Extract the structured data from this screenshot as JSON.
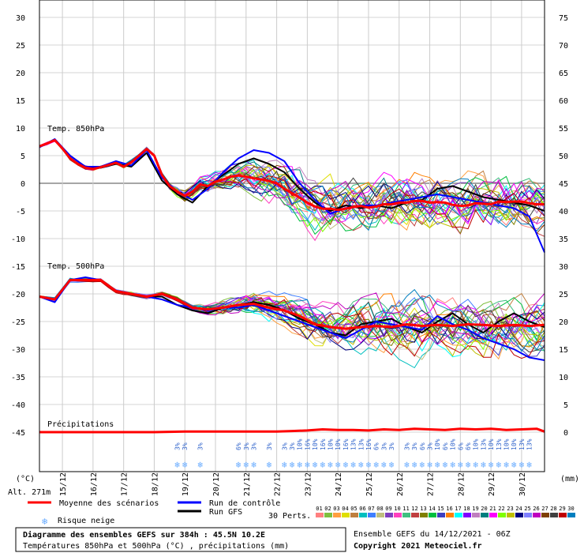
{
  "chart_data": {
    "type": "line",
    "title": "Diagramme des ensembles GEFS sur 384h : 45.5N 10.2E",
    "subtitle": "Températures 850hPa et 500hPa (°C) , précipitations (mm)",
    "run_label": "Ensemble GEFS du 14/12/2021 - 06Z",
    "copyright": "Copyright 2021 Meteociel.fr",
    "altitude_label": "Alt. 271m",
    "left_unit": "(°C)",
    "right_unit": "(mm)",
    "left_ticks": [
      30,
      25,
      20,
      15,
      10,
      5,
      0,
      -5,
      -10,
      -15,
      -20,
      -25,
      -30,
      -35,
      -40,
      -45
    ],
    "right_ticks": [
      75,
      70,
      65,
      60,
      55,
      50,
      45,
      40,
      35,
      30,
      25,
      20,
      15,
      10,
      5,
      0
    ],
    "ylim": [
      -45,
      30
    ],
    "dates": [
      "15/12",
      "16/12",
      "17/12",
      "18/12",
      "19/12",
      "20/12",
      "21/12",
      "22/12",
      "23/12",
      "24/12",
      "25/12",
      "26/12",
      "27/12",
      "28/12",
      "29/12",
      "30/12"
    ],
    "x_days": [
      14.25,
      30.75
    ],
    "panel_labels": {
      "t850": "Temp. 850hPa",
      "t500": "Temp. 500hPa",
      "precip": "Précipitations"
    },
    "legend": {
      "mean": "Moyenne des scénarios",
      "control": "Run de contrôle",
      "gfs": "Run GFS",
      "snow": "Risque neige",
      "perts": "30 Perts."
    },
    "colors": {
      "mean": "#ff0000",
      "control": "#0000ff",
      "gfs": "#000000",
      "snow": "#66aaff"
    },
    "member_numbers": [
      "01",
      "02",
      "03",
      "04",
      "05",
      "06",
      "07",
      "08",
      "09",
      "10",
      "11",
      "12",
      "13",
      "14",
      "15",
      "16",
      "17",
      "18",
      "19",
      "20",
      "21",
      "22",
      "23",
      "24",
      "25",
      "26",
      "27",
      "28",
      "29",
      "30"
    ],
    "member_colors": [
      "#ff7f7f",
      "#7fbf3f",
      "#ff9f3f",
      "#dfdf00",
      "#bf7f3f",
      "#00bfbf",
      "#3f7fff",
      "#bfbf7f",
      "#7f3fbf",
      "#ff3fbf",
      "#3fbf7f",
      "#bf3f3f",
      "#7f7f00",
      "#00bf3f",
      "#3f3fbf",
      "#ff7f00",
      "#00ffff",
      "#7f00ff",
      "#bf7fbf",
      "#007f7f",
      "#ff00ff",
      "#7fff00",
      "#bfbf00",
      "#00007f",
      "#7f7fff",
      "#bf00bf",
      "#7f3f00",
      "#3f3f3f",
      "#bf0000",
      "#007fbf"
    ],
    "snow_days": [
      {
        "day": 18.75,
        "pct": "3%"
      },
      {
        "day": 19.0,
        "pct": "3%"
      },
      {
        "day": 19.5,
        "pct": "3%"
      },
      {
        "day": 20.75,
        "pct": "6%"
      },
      {
        "day": 21.0,
        "pct": "3%"
      },
      {
        "day": 21.25,
        "pct": "3%"
      },
      {
        "day": 21.75,
        "pct": "3%"
      },
      {
        "day": 22.25,
        "pct": "3%"
      },
      {
        "day": 22.5,
        "pct": "3%"
      },
      {
        "day": 22.75,
        "pct": "10%"
      },
      {
        "day": 23.0,
        "pct": "16%"
      },
      {
        "day": 23.25,
        "pct": "10%"
      },
      {
        "day": 23.5,
        "pct": "16%"
      },
      {
        "day": 23.75,
        "pct": "10%"
      },
      {
        "day": 24.0,
        "pct": "10%"
      },
      {
        "day": 24.25,
        "pct": "16%"
      },
      {
        "day": 24.5,
        "pct": "13%"
      },
      {
        "day": 24.75,
        "pct": "13%"
      },
      {
        "day": 25.0,
        "pct": "16%"
      },
      {
        "day": 25.25,
        "pct": "6%"
      },
      {
        "day": 25.5,
        "pct": "3%"
      },
      {
        "day": 25.75,
        "pct": "3%"
      },
      {
        "day": 26.25,
        "pct": "3%"
      },
      {
        "day": 26.5,
        "pct": "3%"
      },
      {
        "day": 26.75,
        "pct": "6%"
      },
      {
        "day": 27.0,
        "pct": "3%"
      },
      {
        "day": 27.25,
        "pct": "10%"
      },
      {
        "day": 27.5,
        "pct": "6%"
      },
      {
        "day": 27.75,
        "pct": "10%"
      },
      {
        "day": 28.0,
        "pct": "6%"
      },
      {
        "day": 28.25,
        "pct": "6%"
      },
      {
        "day": 28.5,
        "pct": "10%"
      },
      {
        "day": 28.75,
        "pct": "13%"
      },
      {
        "day": 29.0,
        "pct": "10%"
      },
      {
        "day": 29.25,
        "pct": "13%"
      },
      {
        "day": 29.5,
        "pct": "10%"
      },
      {
        "day": 29.75,
        "pct": "10%"
      },
      {
        "day": 30.0,
        "pct": "13%"
      },
      {
        "day": 30.25,
        "pct": "13%"
      }
    ],
    "series": [
      {
        "name": "Moyenne des scénarios",
        "role": "t850_mean",
        "x": [
          14.25,
          14.5,
          14.75,
          15.0,
          15.25,
          15.5,
          15.75,
          16.0,
          16.25,
          16.5,
          16.75,
          17.0,
          17.25,
          17.5,
          17.75,
          18.0,
          18.25,
          18.5,
          18.75,
          19.0,
          19.25,
          19.5,
          19.75,
          20.0,
          20.25,
          20.5,
          20.75,
          21.0,
          21.25,
          21.5,
          21.75,
          22.0,
          22.25,
          22.5,
          22.75,
          23.0,
          23.25,
          23.5,
          23.75,
          24.0,
          24.25,
          24.5,
          24.75,
          25.0,
          25.25,
          25.5,
          25.75,
          26.0,
          26.25,
          26.5,
          26.75,
          27.0,
          27.25,
          27.5,
          27.75,
          28.0,
          28.25,
          28.5,
          28.75,
          29.0,
          29.25,
          29.5,
          29.75,
          30.0,
          30.25,
          30.5,
          30.75
        ],
        "values": [
          6.7,
          7.2,
          7.8,
          6.3,
          4.5,
          3.5,
          2.8,
          2.6,
          2.9,
          3.3,
          3.7,
          3.0,
          3.8,
          5.0,
          6.2,
          5.0,
          1.5,
          -0.5,
          -1.5,
          -2.3,
          -1.5,
          -0.2,
          -0.5,
          0.3,
          0.7,
          1.2,
          1.4,
          1.2,
          0.9,
          0.7,
          0.4,
          0.0,
          -1.0,
          -1.8,
          -2.6,
          -3.5,
          -4.2,
          -4.6,
          -4.6,
          -4.8,
          -4.6,
          -4.3,
          -4.1,
          -4.4,
          -4.2,
          -3.8,
          -3.8,
          -3.5,
          -3.5,
          -3.2,
          -3.2,
          -3.5,
          -3.4,
          -3.5,
          -3.9,
          -4.1,
          -4.0,
          -3.6,
          -3.7,
          -3.8,
          -3.3,
          -3.4,
          -3.3,
          -3.3,
          -3.6,
          -3.8,
          -3.8
        ]
      },
      {
        "name": "Run de contrôle",
        "role": "t850_control",
        "x": [
          14.25,
          14.75,
          15.25,
          15.75,
          16.25,
          16.75,
          17.25,
          17.75,
          18.25,
          18.75,
          19.25,
          19.75,
          20.25,
          20.75,
          21.25,
          21.75,
          22.25,
          22.75,
          23.25,
          23.75,
          24.25,
          24.75,
          25.25,
          25.75,
          26.25,
          26.75,
          27.25,
          27.75,
          28.25,
          28.75,
          29.25,
          29.75,
          30.25,
          30.75
        ],
        "values": [
          6.5,
          8.0,
          5.0,
          3.0,
          3.0,
          4.0,
          3.2,
          6.0,
          1.0,
          -1.5,
          -3.0,
          -1.0,
          2.0,
          4.5,
          6.0,
          5.5,
          4.0,
          0.0,
          -3.0,
          -5.5,
          -4.5,
          -4.0,
          -4.0,
          -3.5,
          -3.0,
          -2.5,
          -2.0,
          -2.5,
          -3.0,
          -3.5,
          -4.0,
          -4.5,
          -6.0,
          -12.5
        ]
      },
      {
        "name": "Run GFS",
        "role": "t850_gfs",
        "x": [
          14.25,
          14.75,
          15.25,
          15.75,
          16.25,
          16.75,
          17.25,
          17.75,
          18.25,
          18.75,
          19.25,
          19.75,
          20.25,
          20.75,
          21.25,
          21.75,
          22.25,
          22.75,
          23.25,
          23.75,
          24.25,
          24.75,
          25.25,
          25.75,
          26.25,
          26.75,
          27.25,
          27.75,
          28.25,
          28.75,
          29.25,
          29.75,
          30.25,
          30.75
        ],
        "values": [
          6.6,
          7.8,
          5.0,
          3.0,
          2.8,
          3.5,
          3.0,
          5.5,
          0.5,
          -2.0,
          -3.5,
          -0.5,
          1.5,
          3.5,
          4.5,
          3.5,
          2.0,
          -1.0,
          -3.5,
          -5.0,
          -4.0,
          -4.5,
          -4.0,
          -4.5,
          -3.5,
          -3.0,
          -1.0,
          -0.5,
          -1.5,
          -2.5,
          -3.0,
          -3.5,
          -4.0,
          -5.0
        ]
      },
      {
        "name": "Moyenne des scénarios",
        "role": "t500_mean",
        "x": [
          14.25,
          14.75,
          15.25,
          15.75,
          16.25,
          16.75,
          17.25,
          17.75,
          18.25,
          18.75,
          19.25,
          19.75,
          20.25,
          20.75,
          21.25,
          21.75,
          22.25,
          22.75,
          23.25,
          23.75,
          24.25,
          24.75,
          25.25,
          25.75,
          26.25,
          26.75,
          27.25,
          27.75,
          28.25,
          28.75,
          29.25,
          29.75,
          30.25,
          30.75
        ],
        "values": [
          -20.5,
          -21.0,
          -17.5,
          -17.5,
          -17.5,
          -19.5,
          -20.0,
          -20.5,
          -20.0,
          -21.0,
          -22.5,
          -22.8,
          -22.5,
          -22.0,
          -21.8,
          -22.5,
          -23.0,
          -24.0,
          -25.5,
          -26.0,
          -26.3,
          -26.0,
          -25.8,
          -26.0,
          -25.5,
          -25.8,
          -25.6,
          -25.8,
          -25.5,
          -25.6,
          -25.8,
          -25.6,
          -25.8,
          -25.6
        ]
      },
      {
        "name": "Run de contrôle",
        "role": "t500_control",
        "x": [
          14.25,
          14.75,
          15.25,
          15.75,
          16.25,
          16.75,
          17.25,
          17.75,
          18.25,
          18.75,
          19.25,
          19.75,
          20.25,
          20.75,
          21.25,
          21.75,
          22.25,
          22.75,
          23.25,
          23.75,
          24.25,
          24.75,
          25.25,
          25.75,
          26.25,
          26.75,
          27.25,
          27.75,
          28.25,
          28.75,
          29.25,
          29.75,
          30.25,
          30.75
        ],
        "values": [
          -20.5,
          -21.5,
          -17.5,
          -17.0,
          -17.5,
          -19.5,
          -20.0,
          -20.5,
          -21.0,
          -22.0,
          -22.5,
          -23.0,
          -22.5,
          -22.5,
          -22.0,
          -23.0,
          -24.0,
          -25.0,
          -26.0,
          -27.0,
          -28.0,
          -26.5,
          -25.0,
          -25.5,
          -26.0,
          -26.5,
          -24.0,
          -25.5,
          -26.5,
          -28.0,
          -29.0,
          -30.0,
          -31.5,
          -32.0
        ]
      },
      {
        "name": "Run GFS",
        "role": "t500_gfs",
        "x": [
          14.25,
          14.75,
          15.25,
          15.75,
          16.25,
          16.75,
          17.25,
          17.75,
          18.25,
          18.75,
          19.25,
          19.75,
          20.25,
          20.75,
          21.25,
          21.75,
          22.25,
          22.75,
          23.25,
          23.75,
          24.25,
          24.75,
          25.25,
          25.75,
          26.25,
          26.75,
          27.25,
          27.75,
          28.25,
          28.75,
          29.25,
          29.75,
          30.25,
          30.75
        ],
        "values": [
          -20.5,
          -21.0,
          -17.5,
          -17.5,
          -17.5,
          -19.5,
          -20.0,
          -20.5,
          -20.5,
          -22.0,
          -23.0,
          -23.5,
          -22.5,
          -22.0,
          -21.5,
          -22.0,
          -23.0,
          -24.5,
          -25.5,
          -27.0,
          -27.5,
          -25.5,
          -25.0,
          -24.5,
          -26.0,
          -27.0,
          -25.0,
          -23.5,
          -25.5,
          -27.0,
          -25.0,
          -23.5,
          -25.0,
          -26.0
        ]
      },
      {
        "name": "Moyenne des scénarios",
        "role": "precip_mean",
        "x": [
          14.25,
          18.0,
          19.0,
          20.0,
          21.0,
          22.0,
          22.5,
          23.0,
          23.5,
          24.0,
          24.5,
          25.0,
          25.5,
          26.0,
          26.5,
          27.0,
          27.5,
          28.0,
          28.5,
          29.0,
          29.5,
          30.0,
          30.5,
          30.75
        ],
        "values": [
          0.0,
          0.0,
          0.1,
          0.1,
          0.1,
          0.1,
          0.2,
          0.3,
          0.5,
          0.4,
          0.4,
          0.3,
          0.5,
          0.4,
          0.6,
          0.5,
          0.4,
          0.6,
          0.5,
          0.6,
          0.4,
          0.5,
          0.6,
          0.1
        ]
      }
    ],
    "precip_axis_right": [
      0,
      75
    ]
  }
}
